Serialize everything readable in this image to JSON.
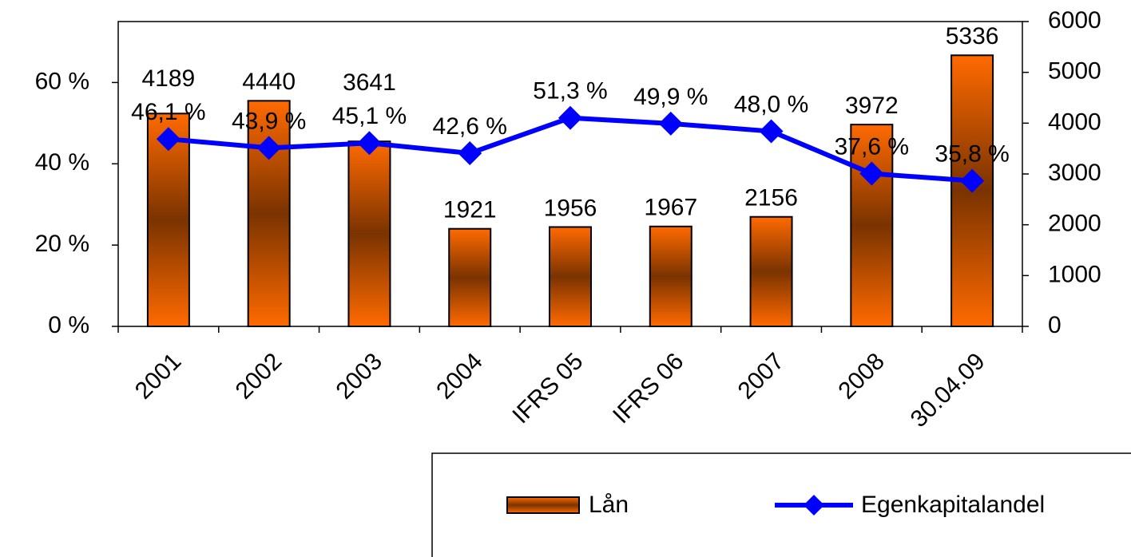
{
  "chart_data": {
    "type": "bar-line",
    "categories": [
      "2001",
      "2002",
      "2003",
      "2004",
      "IFRS 05",
      "IFRS 06",
      "2007",
      "2008",
      "30.04.09"
    ],
    "series": [
      {
        "name": "Lån",
        "type": "bar",
        "axis": "y2",
        "color": "#ff6600",
        "values": [
          4189,
          4440,
          3641,
          1921,
          1956,
          1967,
          2156,
          3972,
          5336
        ]
      },
      {
        "name": "Egenkapitalandel",
        "type": "line",
        "axis": "y",
        "color": "#0000ff",
        "values": [
          46.1,
          43.9,
          45.1,
          42.6,
          51.3,
          49.9,
          48.0,
          37.6,
          35.8
        ],
        "value_labels": [
          "46,1 %",
          "43,9 %",
          "45,1 %",
          "42,6 %",
          "51,3 %",
          "49,9 %",
          "48,0 %",
          "37,6 %",
          "35,8 %"
        ]
      }
    ],
    "ylim": [
      0,
      75
    ],
    "yticks": [
      {
        "value": 0,
        "label": "0 %"
      },
      {
        "value": 20,
        "label": "20 %"
      },
      {
        "value": 40,
        "label": "40 %"
      },
      {
        "value": 60,
        "label": "60 %"
      }
    ],
    "y2lim": [
      0,
      6000
    ],
    "y2ticks": [
      0,
      1000,
      2000,
      3000,
      4000,
      5000,
      6000
    ],
    "legend": "bottom-right"
  }
}
